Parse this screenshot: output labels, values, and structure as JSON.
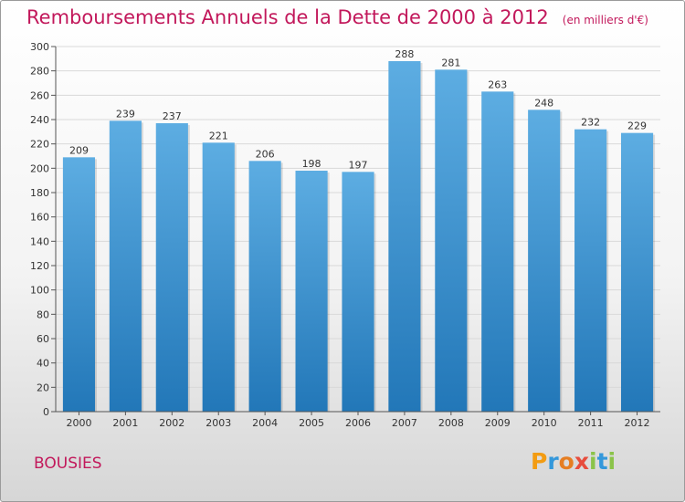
{
  "title": "Remboursements Annuels de la Dette de 2000 à 2012",
  "unit_note": "(en milliers d'€)",
  "commune": "BOUSIES",
  "brand": {
    "letters": [
      "P",
      "r",
      "o",
      "x",
      "i",
      "t",
      "i"
    ],
    "colors": [
      "#f39c12",
      "#3498db",
      "#e67e22",
      "#e74c3c",
      "#8bc34a",
      "#3498db",
      "#8bc34a"
    ]
  },
  "colors": {
    "title": "#c2185b",
    "bar_top": "#5dade2",
    "bar_bottom": "#2277b8",
    "grid": "#d9d9d9"
  },
  "chart_data": {
    "type": "bar",
    "categories": [
      "2000",
      "2001",
      "2002",
      "2003",
      "2004",
      "2005",
      "2006",
      "2007",
      "2008",
      "2009",
      "2010",
      "2011",
      "2012"
    ],
    "values": [
      209,
      239,
      237,
      221,
      206,
      198,
      197,
      288,
      281,
      263,
      248,
      232,
      229
    ],
    "ylim": [
      0,
      300
    ],
    "yticks": [
      0,
      20,
      40,
      60,
      80,
      100,
      120,
      140,
      160,
      180,
      200,
      220,
      240,
      260,
      280,
      300
    ],
    "grid": true,
    "data_labels": true
  }
}
